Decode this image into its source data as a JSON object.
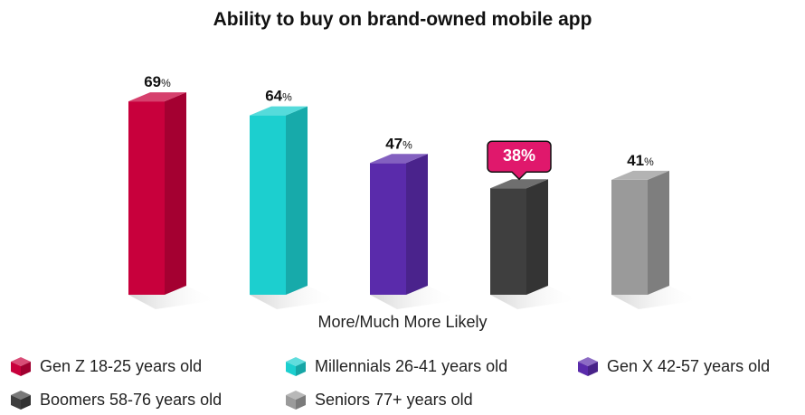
{
  "chart_data": {
    "type": "bar",
    "title": "Ability to buy on brand-owned mobile app",
    "xlabel": "More/Much More Likely",
    "ylabel": "",
    "ylim": [
      0,
      75
    ],
    "value_suffix": "%",
    "categories": [
      "More/Much More Likely"
    ],
    "series": [
      {
        "name": "Gen Z 18-25 years old",
        "values": [
          69
        ],
        "color": "#c8003c"
      },
      {
        "name": "Millennials 26-41 years old",
        "values": [
          64
        ],
        "color": "#1ccfcf"
      },
      {
        "name": "Gen X 42-57 years old",
        "values": [
          47
        ],
        "color": "#5a2bab"
      },
      {
        "name": "Boomers 58-76 years old",
        "values": [
          38
        ],
        "color": "#3f3f3f"
      },
      {
        "name": "Seniors 77+ years old",
        "values": [
          41
        ],
        "color": "#9a9a9a"
      }
    ],
    "highlight": {
      "series_index": 3,
      "color": "#e0186c"
    },
    "legend_position": "bottom",
    "grid": false
  }
}
